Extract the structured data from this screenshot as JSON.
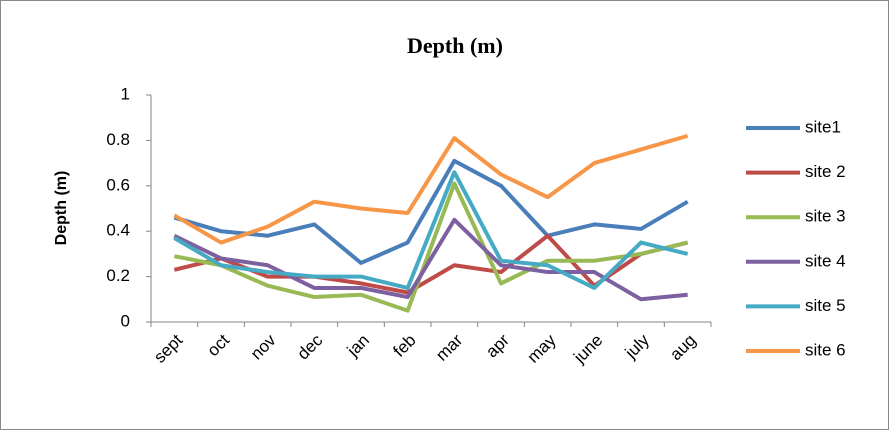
{
  "chart_data": {
    "type": "line",
    "title": "Depth (m)",
    "y_label": "Depth (m)",
    "categories": [
      "sept",
      "oct",
      "nov",
      "dec",
      "jan",
      "feb",
      "mar",
      "apr",
      "may",
      "june",
      "july",
      "aug"
    ],
    "ylim": [
      0,
      1
    ],
    "yticks": [
      0,
      0.2,
      0.4,
      0.6,
      0.8,
      1
    ],
    "grid": false,
    "legend": "right",
    "series": [
      {
        "name": "site1",
        "color": "#4a7ebb",
        "values": [
          0.46,
          0.4,
          0.38,
          0.43,
          0.26,
          0.35,
          0.71,
          0.6,
          0.38,
          0.43,
          0.41,
          0.53
        ]
      },
      {
        "name": "site 2",
        "color": "#be4b48",
        "values": [
          0.23,
          0.28,
          0.2,
          0.2,
          0.17,
          0.13,
          0.25,
          0.22,
          0.38,
          0.16,
          0.3,
          0.35
        ]
      },
      {
        "name": "site 3",
        "color": "#98b954",
        "values": [
          0.29,
          0.25,
          0.16,
          0.11,
          0.12,
          0.05,
          0.61,
          0.17,
          0.27,
          0.27,
          0.3,
          0.35
        ]
      },
      {
        "name": "site 4",
        "color": "#7d60a0",
        "values": [
          0.38,
          0.28,
          0.25,
          0.15,
          0.15,
          0.11,
          0.45,
          0.25,
          0.22,
          0.22,
          0.1,
          0.12
        ]
      },
      {
        "name": "site 5",
        "color": "#46aac5",
        "values": [
          0.37,
          0.25,
          0.22,
          0.2,
          0.2,
          0.15,
          0.66,
          0.27,
          0.25,
          0.15,
          0.35,
          0.3
        ]
      },
      {
        "name": "site 6",
        "color": "#f79646",
        "values": [
          0.47,
          0.35,
          0.42,
          0.53,
          0.5,
          0.48,
          0.81,
          0.65,
          0.55,
          0.7,
          0.76,
          0.82
        ]
      }
    ]
  }
}
